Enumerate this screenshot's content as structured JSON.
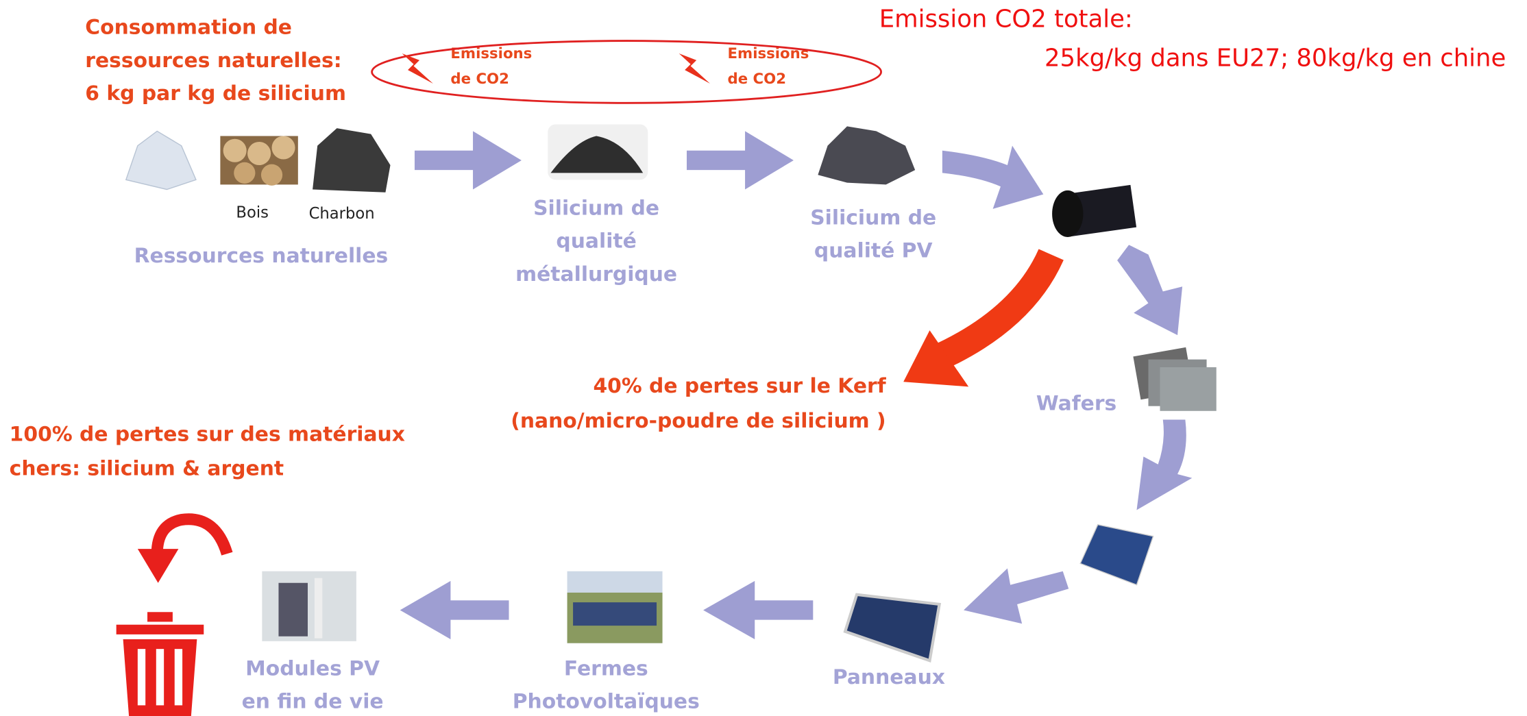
{
  "header": {
    "resources_consumption": [
      "Consommation de",
      "ressources naturelles:",
      "6 kg par kg de silicium"
    ],
    "total_emission": [
      "Emission CO2 totale:",
      "25kg/kg dans EU27; 80kg/kg en chine"
    ]
  },
  "emissions": [
    [
      "Emissions",
      "de CO2"
    ],
    [
      "Emissions",
      "de CO2"
    ]
  ],
  "resources": {
    "items": [
      "Bois",
      "Charbon"
    ],
    "label": "Ressources naturelles"
  },
  "steps": {
    "metallurgical": [
      "Silicium de",
      "qualité",
      "métallurgique"
    ],
    "pv": [
      "Silicium de",
      "qualité PV"
    ],
    "wafers": "Wafers",
    "panels": "Panneaux",
    "farms": [
      "Fermes",
      "Photovoltaïques"
    ],
    "modules": [
      "Modules PV",
      "en fin de vie"
    ]
  },
  "kerf_loss": [
    "40% de pertes sur le Kerf",
    "(nano/micro-poudre de silicium )"
  ],
  "end_loss": [
    "100%  de pertes sur des matériaux",
    "chers: silicium & argent"
  ]
}
